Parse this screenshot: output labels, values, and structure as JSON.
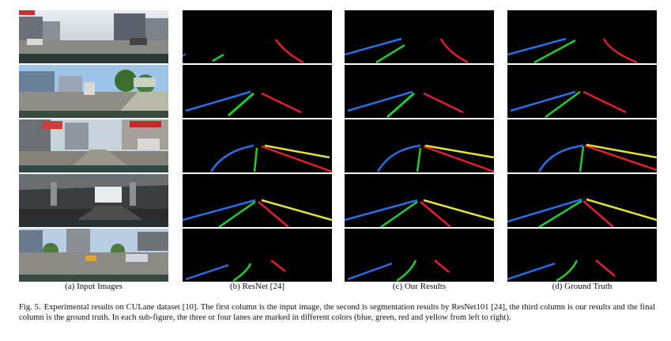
{
  "subcaptions": {
    "a": "(a) Input Images",
    "b": "(b) ResNet [24]",
    "c": "(c) Our Results",
    "d": "(d) Ground Truth"
  },
  "figure_caption": {
    "label": "Fig. 5.",
    "text": "Experimental results on CULane dataset [10]. The first column is the input image, the second is segmentation results by ResNet101 [24], the third column is our results and the final column is the ground truth. In each sub-figure, the three or four lanes are marked in different colors (blue, green, red and yellow from left to right)."
  },
  "lane_colors": {
    "blue": "#2a6fe6",
    "green": "#22cc33",
    "red": "#e0202e",
    "yellow": "#e6e23a"
  }
}
